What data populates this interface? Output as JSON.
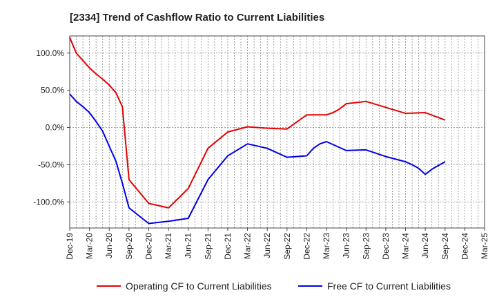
{
  "chart_data": {
    "type": "line",
    "title": "[2334]  Trend of Cashflow Ratio to Current Liabilities",
    "xlabel": "",
    "ylabel": "",
    "x_ticks": [
      "Dec-19",
      "Mar-20",
      "Jun-20",
      "Sep-20",
      "Dec-20",
      "Mar-21",
      "Jun-21",
      "Sep-21",
      "Dec-21",
      "Mar-22",
      "Jun-22",
      "Sep-22",
      "Dec-22",
      "Mar-23",
      "Jun-23",
      "Sep-23",
      "Dec-23",
      "Mar-24",
      "Jun-24",
      "Sep-24",
      "Dec-24",
      "Mar-25"
    ],
    "y_ticks": [
      {
        "value": 100,
        "label": "100.0%"
      },
      {
        "value": 50,
        "label": "50.0%"
      },
      {
        "value": 0,
        "label": "0.0%"
      },
      {
        "value": -50,
        "label": "-50.0%"
      },
      {
        "value": -100,
        "label": "-100.0%"
      }
    ],
    "ylim": [
      -135,
      123
    ],
    "grid": true,
    "legend_position": "bottom",
    "series": [
      {
        "name": "Operating CF to Current Liabilities",
        "color": "#e60000",
        "points": [
          [
            "Dec-19",
            121
          ],
          [
            "Jan-20",
            100
          ],
          [
            "Feb-20",
            90
          ],
          [
            "Mar-20",
            80
          ],
          [
            "Apr-20",
            72
          ],
          [
            "May-20",
            65
          ],
          [
            "Jun-20",
            57
          ],
          [
            "Jul-20",
            47
          ],
          [
            "Aug-20",
            28
          ],
          [
            "Sep-20",
            -70
          ],
          [
            "Dec-20",
            -102
          ],
          [
            "Mar-21",
            -108
          ],
          [
            "Jun-21",
            -82
          ],
          [
            "Sep-21",
            -28
          ],
          [
            "Dec-21",
            -6
          ],
          [
            "Mar-22",
            1
          ],
          [
            "Jun-22",
            -1
          ],
          [
            "Sep-22",
            -2
          ],
          [
            "Dec-22",
            17
          ],
          [
            "Mar-23",
            17
          ],
          [
            "Apr-23",
            20
          ],
          [
            "May-23",
            25
          ],
          [
            "Jun-23",
            32
          ],
          [
            "Sep-23",
            35
          ],
          [
            "Dec-23",
            27
          ],
          [
            "Mar-24",
            19
          ],
          [
            "Jun-24",
            20
          ],
          [
            "Sep-24",
            10
          ]
        ]
      },
      {
        "name": "Free CF to Current Liabilities",
        "color": "#0000e6",
        "points": [
          [
            "Dec-19",
            45
          ],
          [
            "Jan-20",
            35
          ],
          [
            "Feb-20",
            28
          ],
          [
            "Mar-20",
            20
          ],
          [
            "Apr-20",
            8
          ],
          [
            "May-20",
            -5
          ],
          [
            "Jun-20",
            -25
          ],
          [
            "Jul-20",
            -45
          ],
          [
            "Aug-20",
            -75
          ],
          [
            "Sep-20",
            -108
          ],
          [
            "Dec-20",
            -129
          ],
          [
            "Mar-21",
            -126
          ],
          [
            "Jun-21",
            -122
          ],
          [
            "Sep-21",
            -70
          ],
          [
            "Dec-21",
            -38
          ],
          [
            "Mar-22",
            -22
          ],
          [
            "Jun-22",
            -28
          ],
          [
            "Sep-22",
            -40
          ],
          [
            "Dec-22",
            -38
          ],
          [
            "Jan-23",
            -28
          ],
          [
            "Feb-23",
            -22
          ],
          [
            "Mar-23",
            -19
          ],
          [
            "Jun-23",
            -31
          ],
          [
            "Sep-23",
            -30
          ],
          [
            "Dec-23",
            -39
          ],
          [
            "Mar-24",
            -46
          ],
          [
            "Apr-24",
            -50
          ],
          [
            "May-24",
            -55
          ],
          [
            "Jun-24",
            -63
          ],
          [
            "Jul-24",
            -56
          ],
          [
            "Sep-24",
            -46
          ]
        ]
      }
    ]
  }
}
